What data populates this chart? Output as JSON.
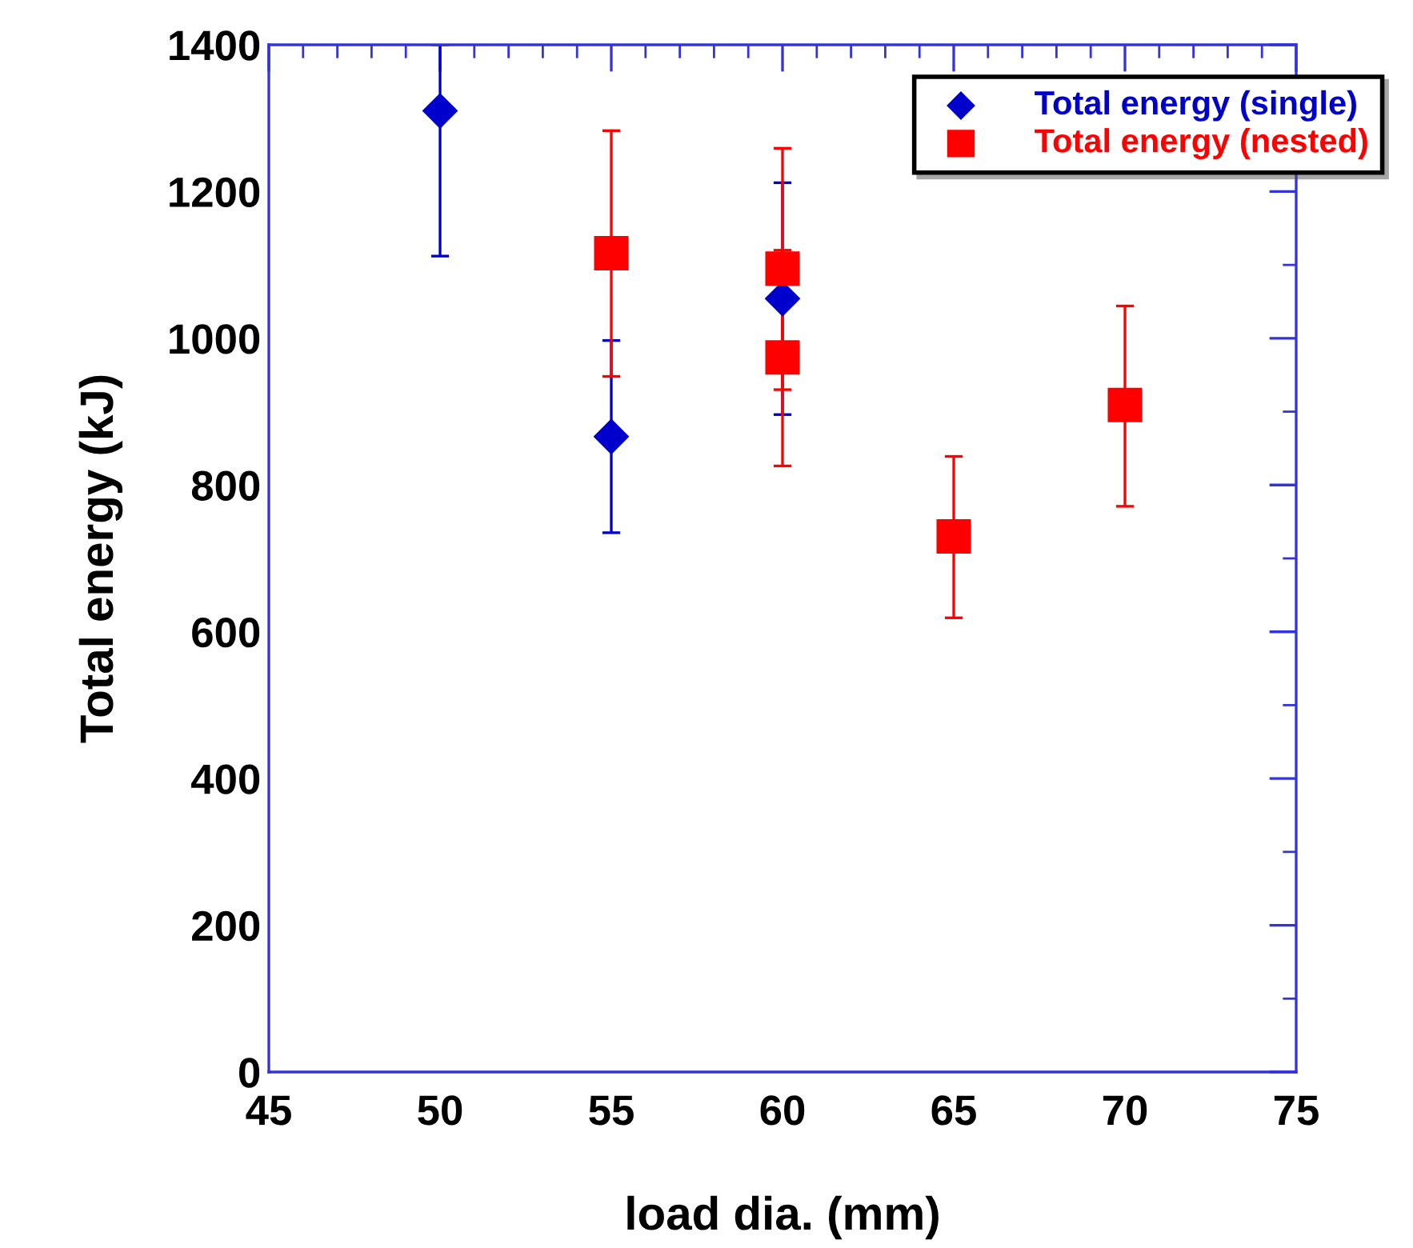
{
  "chart_data": {
    "type": "scatter",
    "xlabel": "load dia. (mm)",
    "ylabel": "Total energy (kJ)",
    "xlim": [
      45,
      75
    ],
    "xticks": [
      45,
      50,
      55,
      60,
      65,
      70,
      75
    ],
    "ylim": [
      0,
      1400
    ],
    "yticks": [
      0,
      200,
      400,
      600,
      800,
      1000,
      1200,
      1400
    ],
    "grid": false,
    "legend": "top right",
    "series": [
      {
        "name": "Total energy (single)",
        "color": "#0000cc",
        "marker": "diamond",
        "x": [
          50,
          55,
          60
        ],
        "values": [
          1310,
          866,
          1054
        ],
        "errors": [
          [
            1112,
            1400
          ],
          [
            735,
            997
          ],
          [
            896,
            1212
          ]
        ]
      },
      {
        "name": "Total energy (nested)",
        "color": "#ff0000",
        "marker": "square",
        "x": [
          55,
          60,
          60,
          65,
          70
        ],
        "values": [
          1116,
          1095,
          974,
          730,
          909
        ],
        "errors": [
          [
            948,
            1283
          ],
          [
            930,
            1259
          ],
          [
            826,
            1120
          ],
          [
            619,
            839
          ],
          [
            771,
            1044
          ]
        ]
      }
    ]
  }
}
